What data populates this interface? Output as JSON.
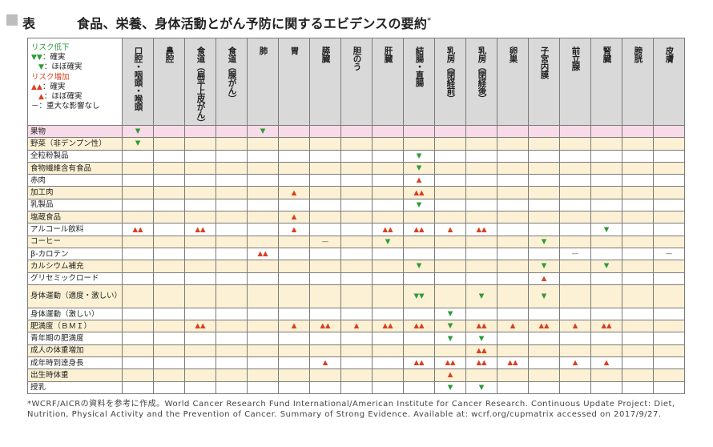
{
  "title": {
    "label": "表",
    "text": "食品、栄養、身体活動とがん予防に関するエビデンスの要約",
    "sup": "*"
  },
  "legend": {
    "lower_head": "リスク低下",
    "lower_definite_sym": "▼▼",
    "lower_definite": "：確実",
    "lower_probable_sym": "▼",
    "lower_probable": "：ほぼ確実",
    "higher_head": "リスク増加",
    "higher_definite_sym": "▲▲",
    "higher_definite": "：確実",
    "higher_probable_sym": "▲",
    "higher_probable": "：ほぼ確実",
    "none_sym": "－",
    "none": "：重大な影響なし"
  },
  "columns": [
    "口腔・咽頭・喉頭",
    "鼻腔",
    "食道（扁平上皮がん）",
    "食道（腺がん）",
    "肺",
    "胃",
    "膵臓",
    "胆のう",
    "肝臓",
    "結腸・直腸",
    "乳房（閉経前）",
    "乳房（閉経後）",
    "卵巣",
    "子宮内膜",
    "前立腺",
    "腎臓",
    "膀胱",
    "皮膚"
  ],
  "rows": [
    {
      "label": "果物",
      "style": "pink",
      "cells": [
        "d",
        "",
        "",
        "",
        "d",
        "",
        "",
        "",
        "",
        "",
        "",
        "",
        "",
        "",
        "",
        "",
        "",
        ""
      ]
    },
    {
      "label": "野菜（非デンプン性）",
      "style": "cream",
      "cells": [
        "d",
        "",
        "",
        "",
        "",
        "",
        "",
        "",
        "",
        "",
        "",
        "",
        "",
        "",
        "",
        "",
        "",
        ""
      ]
    },
    {
      "label": "全粒粉製品",
      "style": "white",
      "cells": [
        "",
        "",
        "",
        "",
        "",
        "",
        "",
        "",
        "",
        "d",
        "",
        "",
        "",
        "",
        "",
        "",
        "",
        ""
      ]
    },
    {
      "label": "食物繊維含有食品",
      "style": "cream",
      "cells": [
        "",
        "",
        "",
        "",
        "",
        "",
        "",
        "",
        "",
        "d",
        "",
        "",
        "",
        "",
        "",
        "",
        "",
        ""
      ]
    },
    {
      "label": "赤肉",
      "style": "white",
      "cells": [
        "",
        "",
        "",
        "",
        "",
        "",
        "",
        "",
        "",
        "u",
        "",
        "",
        "",
        "",
        "",
        "",
        "",
        ""
      ]
    },
    {
      "label": "加工肉",
      "style": "cream",
      "cells": [
        "",
        "",
        "",
        "",
        "",
        "u",
        "",
        "",
        "",
        "uu",
        "",
        "",
        "",
        "",
        "",
        "",
        "",
        ""
      ]
    },
    {
      "label": "乳製品",
      "style": "white",
      "cells": [
        "",
        "",
        "",
        "",
        "",
        "",
        "",
        "",
        "",
        "d",
        "",
        "",
        "",
        "",
        "",
        "",
        "",
        ""
      ]
    },
    {
      "label": "塩蔵食品",
      "style": "cream",
      "cells": [
        "",
        "",
        "",
        "",
        "",
        "u",
        "",
        "",
        "",
        "",
        "",
        "",
        "",
        "",
        "",
        "",
        "",
        ""
      ]
    },
    {
      "label": "アルコール飲料",
      "style": "white",
      "cells": [
        "uu",
        "",
        "uu",
        "",
        "",
        "u",
        "",
        "",
        "uu",
        "uu",
        "u",
        "uu",
        "",
        "",
        "",
        "d",
        "",
        ""
      ]
    },
    {
      "label": "コーヒー",
      "style": "cream",
      "cells": [
        "",
        "",
        "",
        "",
        "",
        "",
        "n",
        "",
        "d",
        "",
        "",
        "",
        "",
        "d",
        "",
        "",
        "",
        ""
      ]
    },
    {
      "label": "β-カロテン",
      "style": "white",
      "cells": [
        "",
        "",
        "",
        "",
        "uu",
        "",
        "",
        "",
        "",
        "",
        "",
        "",
        "",
        "",
        "n",
        "",
        "",
        "n"
      ]
    },
    {
      "label": "カルシウム補充",
      "style": "cream",
      "cells": [
        "",
        "",
        "",
        "",
        "",
        "",
        "",
        "",
        "",
        "d",
        "",
        "",
        "",
        "d",
        "",
        "d",
        "",
        ""
      ]
    },
    {
      "label": "グリセミックロード",
      "style": "white",
      "cells": [
        "",
        "",
        "",
        "",
        "",
        "",
        "",
        "",
        "",
        "",
        "",
        "",
        "",
        "u",
        "",
        "",
        "",
        ""
      ]
    },
    {
      "label": "身体運動（適度・激しい）",
      "style": "cream",
      "tall": true,
      "cells": [
        "",
        "",
        "",
        "",
        "",
        "",
        "",
        "",
        "",
        "dd",
        "",
        "d",
        "",
        "d",
        "",
        "",
        "",
        ""
      ]
    },
    {
      "label": "身体運動（激しい）",
      "style": "white",
      "cells": [
        "",
        "",
        "",
        "",
        "",
        "",
        "",
        "",
        "",
        "",
        "d",
        "",
        "",
        "",
        "",
        "",
        "",
        ""
      ]
    },
    {
      "label": "肥満度（ＢＭＩ）",
      "style": "cream",
      "cells": [
        "",
        "",
        "uu",
        "",
        "",
        "u",
        "uu",
        "u",
        "uu",
        "uu",
        "d",
        "uu",
        "u",
        "uu",
        "u",
        "uu",
        "",
        ""
      ]
    },
    {
      "label": "青年期の肥満度",
      "style": "white",
      "cells": [
        "",
        "",
        "",
        "",
        "",
        "",
        "",
        "",
        "",
        "",
        "d",
        "d",
        "",
        "",
        "",
        "",
        "",
        ""
      ]
    },
    {
      "label": "成人の体重増加",
      "style": "cream",
      "cells": [
        "",
        "",
        "",
        "",
        "",
        "",
        "",
        "",
        "",
        "",
        "",
        "uu",
        "",
        "",
        "",
        "",
        "",
        ""
      ]
    },
    {
      "label": "成年時到達身長",
      "style": "white",
      "cells": [
        "",
        "",
        "",
        "",
        "",
        "",
        "u",
        "",
        "",
        "uu",
        "uu",
        "uu",
        "uu",
        "",
        "u",
        "u",
        "",
        ""
      ]
    },
    {
      "label": "出生時体重",
      "style": "cream",
      "cells": [
        "",
        "",
        "",
        "",
        "",
        "",
        "",
        "",
        "",
        "",
        "u",
        "",
        "",
        "",
        "",
        "",
        "",
        ""
      ]
    },
    {
      "label": "授乳",
      "style": "white",
      "cells": [
        "",
        "",
        "",
        "",
        "",
        "",
        "",
        "",
        "",
        "",
        "d",
        "d",
        "",
        "",
        "",
        "",
        "",
        ""
      ]
    }
  ],
  "symbols": {
    "d": "▼",
    "dd": "▼▼",
    "u": "▲",
    "uu": "▲▲",
    "n": "—"
  },
  "footnote": "*WCRF/AICRの資料を参考に作成。World Cancer Research Fund International/American Institute for Cancer Research. Continuous Update Project: Diet, Nutrition, Physical Activity and the Prevention of Cancer. Summary of Strong Evidence. Available at: wcrf.org/cupmatrix accessed on 2017/9/27."
}
